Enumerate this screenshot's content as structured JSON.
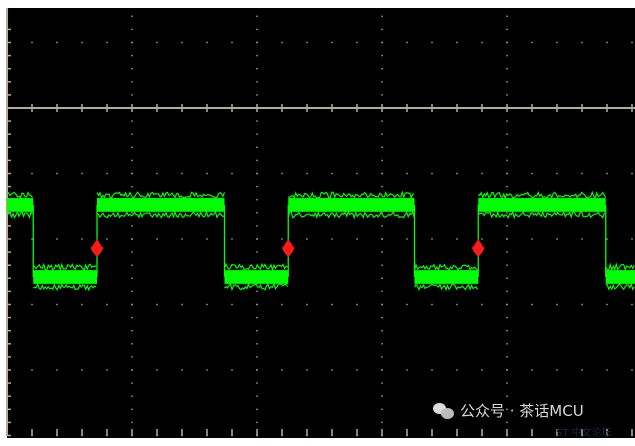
{
  "chart_data": {
    "type": "line",
    "title": "",
    "xlabel": "",
    "ylabel": "",
    "grid": true,
    "x_divisions_visible": 4.94,
    "x_unit": "divisions",
    "y_unit": "divisions from center line",
    "series": [
      {
        "color": "#00ff00",
        "waveform": "square",
        "high_level": -1.48,
        "low_level": -2.58,
        "noise_peak_to_peak": 0.3,
        "edges": [
          {
            "x": 0.21,
            "direction": "falling"
          },
          {
            "x": 0.72,
            "direction": "rising"
          },
          {
            "x": 1.74,
            "direction": "falling"
          },
          {
            "x": 2.25,
            "direction": "rising"
          },
          {
            "x": 3.26,
            "direction": "falling"
          },
          {
            "x": 3.77,
            "direction": "rising"
          },
          {
            "x": 4.79,
            "direction": "falling"
          }
        ]
      }
    ],
    "markers": [
      {
        "x": 0.72,
        "y": -2.14,
        "color": "#ff1a1a"
      },
      {
        "x": 2.25,
        "y": -2.14,
        "color": "#ff1a1a"
      },
      {
        "x": 3.77,
        "y": -2.14,
        "color": "#ff1a1a"
      }
    ],
    "colors": {
      "background": "#000000",
      "graticule": "#b8ad94",
      "trace": "#00ff00",
      "marker": "#ff1a1a"
    }
  },
  "watermark": {
    "text": "公众号 · 茶话MCU",
    "logo_text": "ST 中文论坛"
  }
}
